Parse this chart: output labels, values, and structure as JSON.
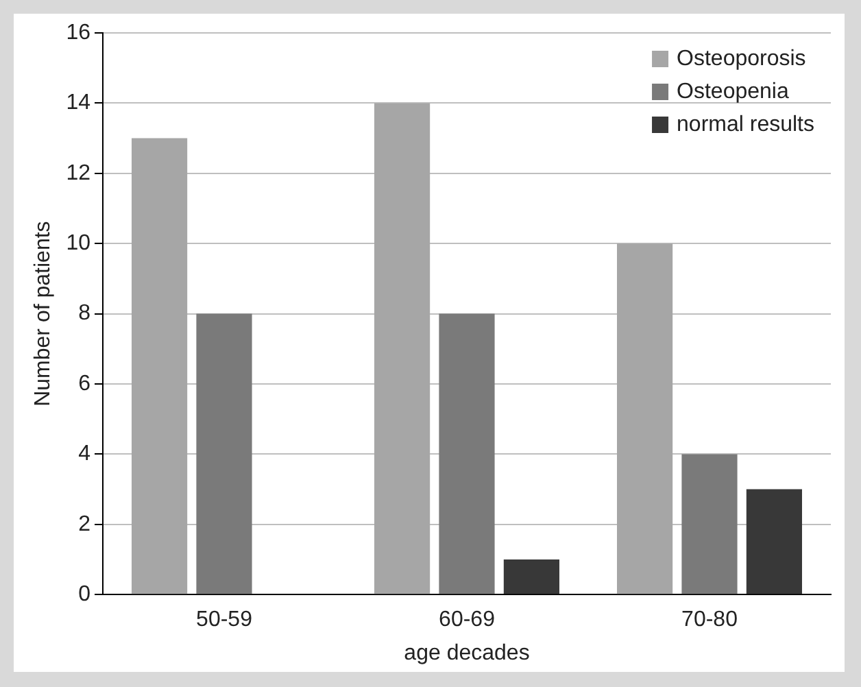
{
  "chart_data": {
    "type": "bar",
    "xlabel": "age decades",
    "ylabel": "Number of patients",
    "categories": [
      "50-59",
      "60-69",
      "70-80"
    ],
    "series": [
      {
        "name": "Osteoporosis",
        "color": "#a6a6a6",
        "values": [
          13,
          14,
          10
        ]
      },
      {
        "name": "Osteopenia",
        "color": "#7a7a7a",
        "values": [
          8,
          8,
          4
        ]
      },
      {
        "name": "normal results",
        "color": "#383838",
        "values": [
          0,
          1,
          3
        ]
      }
    ],
    "ylim": [
      0,
      16
    ],
    "yticks": [
      0,
      2,
      4,
      6,
      8,
      10,
      12,
      14,
      16
    ],
    "grid": "y",
    "legend": "top right"
  }
}
